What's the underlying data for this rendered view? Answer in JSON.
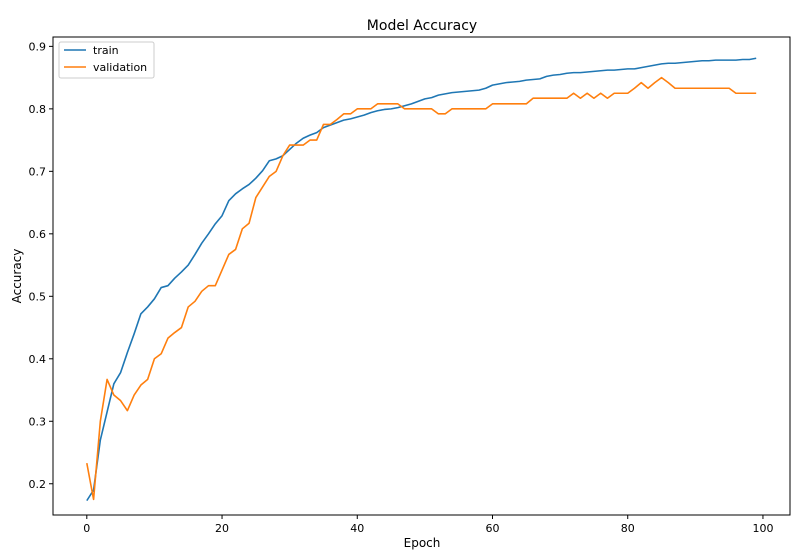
{
  "chart_data": {
    "type": "line",
    "title": "Model Accuracy",
    "xlabel": "Epoch",
    "ylabel": "Accuracy",
    "xlim": [
      -5,
      104
    ],
    "ylim": [
      0.15,
      0.915
    ],
    "x_ticks": [
      0,
      20,
      40,
      60,
      80,
      100
    ],
    "y_ticks": [
      0.2,
      0.3,
      0.4,
      0.5,
      0.6,
      0.7,
      0.8,
      0.9
    ],
    "grid": false,
    "legend_position": "top-left",
    "series": [
      {
        "name": "train",
        "color": "#1f77b4",
        "x": [
          0,
          1,
          2,
          3,
          4,
          5,
          6,
          7,
          8,
          9,
          10,
          11,
          12,
          13,
          14,
          15,
          16,
          17,
          18,
          19,
          20,
          21,
          22,
          23,
          24,
          25,
          26,
          27,
          28,
          29,
          30,
          31,
          32,
          33,
          34,
          35,
          36,
          37,
          38,
          39,
          40,
          41,
          42,
          43,
          44,
          45,
          46,
          47,
          48,
          49,
          50,
          51,
          52,
          53,
          54,
          55,
          56,
          57,
          58,
          59,
          60,
          61,
          62,
          63,
          64,
          65,
          66,
          67,
          68,
          69,
          70,
          71,
          72,
          73,
          74,
          75,
          76,
          77,
          78,
          79,
          80,
          81,
          82,
          83,
          84,
          85,
          86,
          87,
          88,
          89,
          90,
          91,
          92,
          93,
          94,
          95,
          96,
          97,
          98,
          99
        ],
        "values": [
          0.173,
          0.19,
          0.27,
          0.315,
          0.36,
          0.378,
          0.41,
          0.44,
          0.472,
          0.483,
          0.496,
          0.514,
          0.517,
          0.529,
          0.539,
          0.55,
          0.567,
          0.585,
          0.6,
          0.616,
          0.629,
          0.653,
          0.664,
          0.672,
          0.679,
          0.689,
          0.701,
          0.717,
          0.72,
          0.725,
          0.735,
          0.745,
          0.753,
          0.758,
          0.762,
          0.77,
          0.774,
          0.778,
          0.782,
          0.784,
          0.787,
          0.79,
          0.794,
          0.797,
          0.799,
          0.8,
          0.802,
          0.805,
          0.808,
          0.812,
          0.816,
          0.818,
          0.822,
          0.824,
          0.826,
          0.827,
          0.828,
          0.829,
          0.83,
          0.833,
          0.838,
          0.84,
          0.842,
          0.843,
          0.844,
          0.846,
          0.847,
          0.848,
          0.852,
          0.854,
          0.855,
          0.857,
          0.858,
          0.858,
          0.859,
          0.86,
          0.861,
          0.862,
          0.862,
          0.863,
          0.864,
          0.864,
          0.866,
          0.868,
          0.87,
          0.872,
          0.873,
          0.873,
          0.874,
          0.875,
          0.876,
          0.877,
          0.877,
          0.878,
          0.878,
          0.878,
          0.878,
          0.879,
          0.879,
          0.881
        ]
      },
      {
        "name": "validation",
        "color": "#ff7f0e",
        "x": [
          0,
          1,
          2,
          3,
          4,
          5,
          6,
          7,
          8,
          9,
          10,
          11,
          12,
          13,
          14,
          15,
          16,
          17,
          18,
          19,
          20,
          21,
          22,
          23,
          24,
          25,
          26,
          27,
          28,
          29,
          30,
          31,
          32,
          33,
          34,
          35,
          36,
          37,
          38,
          39,
          40,
          41,
          42,
          43,
          44,
          45,
          46,
          47,
          48,
          49,
          50,
          51,
          52,
          53,
          54,
          55,
          56,
          57,
          58,
          59,
          60,
          61,
          62,
          63,
          64,
          65,
          66,
          67,
          68,
          69,
          70,
          71,
          72,
          73,
          74,
          75,
          76,
          77,
          78,
          79,
          80,
          81,
          82,
          83,
          84,
          85,
          86,
          87,
          88,
          89,
          90,
          91,
          92,
          93,
          94,
          95,
          96,
          97,
          98,
          99
        ],
        "values": [
          0.233,
          0.175,
          0.3,
          0.367,
          0.342,
          0.333,
          0.317,
          0.342,
          0.358,
          0.367,
          0.4,
          0.408,
          0.433,
          0.442,
          0.45,
          0.483,
          0.492,
          0.508,
          0.517,
          0.517,
          0.542,
          0.567,
          0.575,
          0.608,
          0.617,
          0.658,
          0.675,
          0.692,
          0.7,
          0.725,
          0.742,
          0.742,
          0.742,
          0.75,
          0.75,
          0.775,
          0.775,
          0.783,
          0.792,
          0.792,
          0.8,
          0.8,
          0.8,
          0.808,
          0.808,
          0.808,
          0.808,
          0.8,
          0.8,
          0.8,
          0.8,
          0.8,
          0.792,
          0.792,
          0.8,
          0.8,
          0.8,
          0.8,
          0.8,
          0.8,
          0.808,
          0.808,
          0.808,
          0.808,
          0.808,
          0.808,
          0.817,
          0.817,
          0.817,
          0.817,
          0.817,
          0.817,
          0.825,
          0.817,
          0.825,
          0.817,
          0.825,
          0.817,
          0.825,
          0.825,
          0.825,
          0.833,
          0.842,
          0.833,
          0.842,
          0.85,
          0.842,
          0.833,
          0.833,
          0.833,
          0.833,
          0.833,
          0.833,
          0.833,
          0.833,
          0.833,
          0.825,
          0.825,
          0.825,
          0.825
        ]
      }
    ]
  }
}
